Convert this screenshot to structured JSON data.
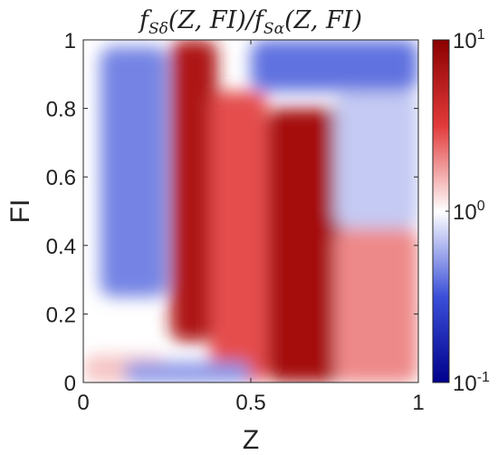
{
  "chart_data": {
    "type": "heatmap",
    "title": "fSδ(Z,FI)/fSα(Z,FI)",
    "title_parts": {
      "f1": "f",
      "sub1": "Sδ",
      "mid": "(Z, FI)/",
      "f2": "f",
      "sub2": "Sα",
      "end": "(Z, FI)"
    },
    "xlabel": "Z",
    "ylabel": "FI",
    "xlim": [
      0,
      1
    ],
    "ylim": [
      0,
      1
    ],
    "x_ticks": [
      {
        "value": 0,
        "label": "0"
      },
      {
        "value": 0.5,
        "label": "0.5"
      },
      {
        "value": 1,
        "label": "1"
      }
    ],
    "y_ticks": [
      {
        "value": 0,
        "label": "0"
      },
      {
        "value": 0.2,
        "label": "0.2"
      },
      {
        "value": 0.4,
        "label": "0.4"
      },
      {
        "value": 0.6,
        "label": "0.6"
      },
      {
        "value": 0.8,
        "label": "0.8"
      },
      {
        "value": 1,
        "label": "1"
      }
    ],
    "colorbar": {
      "scale": "log",
      "range": [
        0.1,
        10
      ],
      "colormap": [
        "#00008b",
        "#3a4fd8",
        "#ffffff",
        "#e23a3a",
        "#8b0000"
      ],
      "ticks": [
        {
          "value": 10,
          "base": "10",
          "exp": "1"
        },
        {
          "value": 1,
          "base": "10",
          "exp": "0"
        },
        {
          "value": 0.1,
          "base": "10",
          "exp": "-1"
        }
      ]
    },
    "log10_ratio_regions": [
      {
        "z": [
          0.0,
          0.25
        ],
        "fi": [
          0.0,
          0.08
        ],
        "log10": 0.15
      },
      {
        "z": [
          0.05,
          0.25
        ],
        "fi": [
          0.25,
          0.98
        ],
        "log10": -0.35
      },
      {
        "z": [
          0.26,
          0.4
        ],
        "fi": [
          0.12,
          1.0
        ],
        "log10": 0.8
      },
      {
        "z": [
          0.38,
          0.55
        ],
        "fi": [
          0.0,
          0.85
        ],
        "log10": 0.45
      },
      {
        "z": [
          0.55,
          0.78
        ],
        "fi": [
          0.0,
          0.8
        ],
        "log10": 0.85
      },
      {
        "z": [
          0.75,
          1.0
        ],
        "fi": [
          0.0,
          0.45
        ],
        "log10": 0.3
      },
      {
        "z": [
          0.12,
          0.5
        ],
        "fi": [
          0.0,
          0.06
        ],
        "log10": -0.3
      },
      {
        "z": [
          0.5,
          1.0
        ],
        "fi": [
          0.85,
          1.0
        ],
        "log10": -0.4
      },
      {
        "z": [
          0.75,
          1.0
        ],
        "fi": [
          0.45,
          0.85
        ],
        "log10": -0.15
      }
    ]
  }
}
